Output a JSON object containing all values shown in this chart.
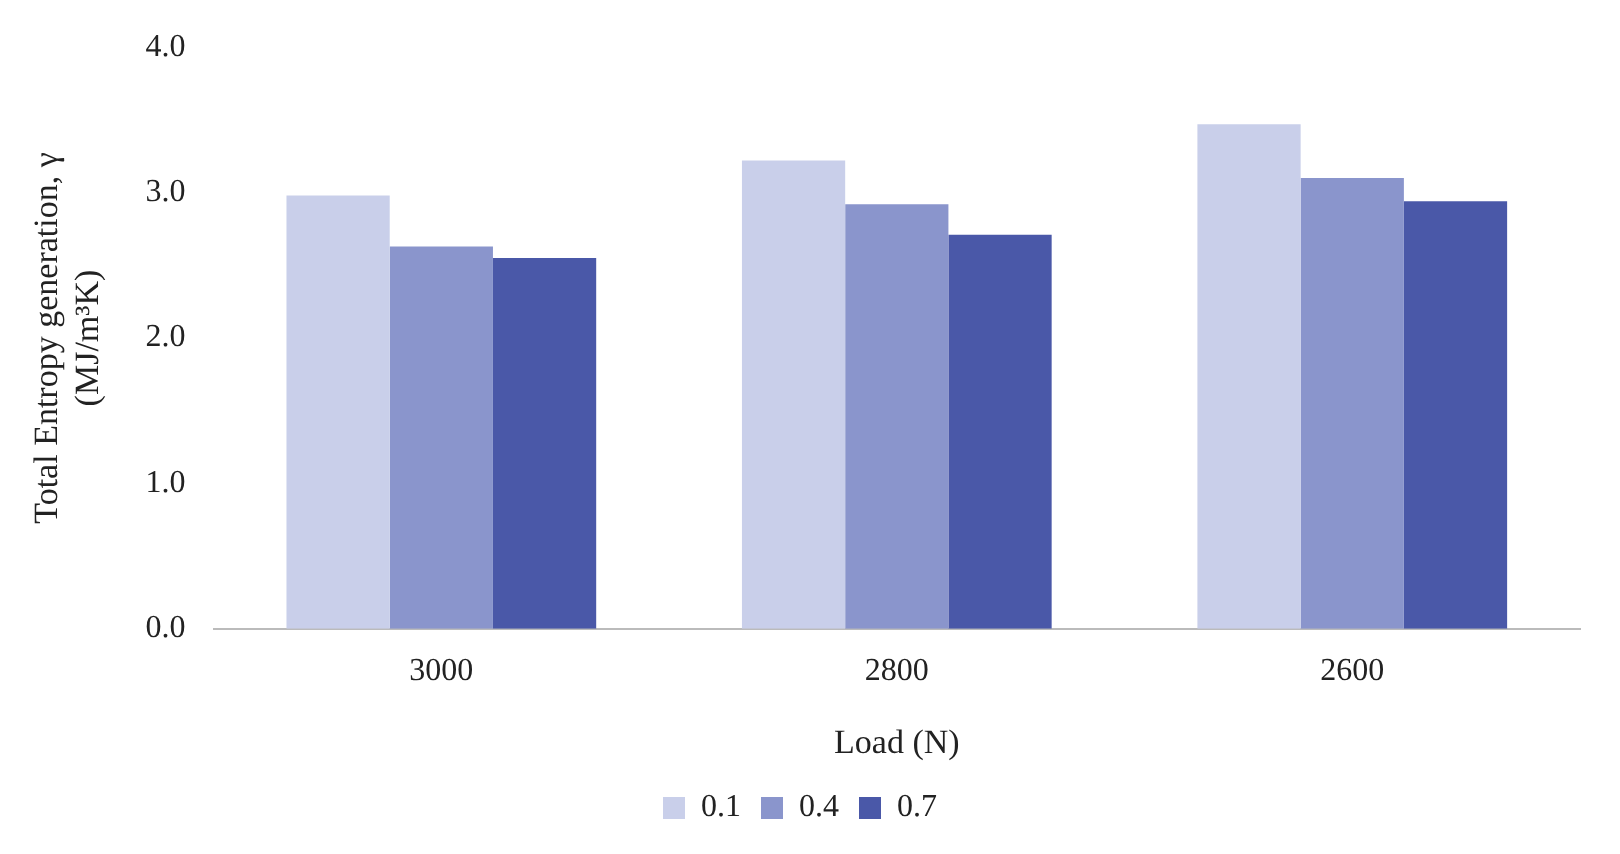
{
  "chart_data": {
    "type": "bar",
    "xlabel": "Load (N)",
    "ylabel": "Total Entropy generation, γ (MJ/m³K)",
    "categories": [
      "3000",
      "2800",
      "2600"
    ],
    "series": [
      {
        "name": "0.1",
        "color": "#c9cfea",
        "values": [
          2.98,
          3.22,
          3.47
        ]
      },
      {
        "name": "0.4",
        "color": "#8a95cc",
        "values": [
          2.63,
          2.92,
          3.1
        ]
      },
      {
        "name": "0.7",
        "color": "#4a58a8",
        "values": [
          2.55,
          2.71,
          2.94
        ]
      }
    ],
    "ylim": [
      0,
      4
    ],
    "yticks": [
      {
        "value": 0,
        "label": "0.0"
      },
      {
        "value": 1,
        "label": "1.0"
      },
      {
        "value": 2,
        "label": "2.0"
      },
      {
        "value": 3,
        "label": "3.0"
      },
      {
        "value": 4,
        "label": "4.0"
      }
    ],
    "grid": false,
    "legend": "bottom"
  }
}
